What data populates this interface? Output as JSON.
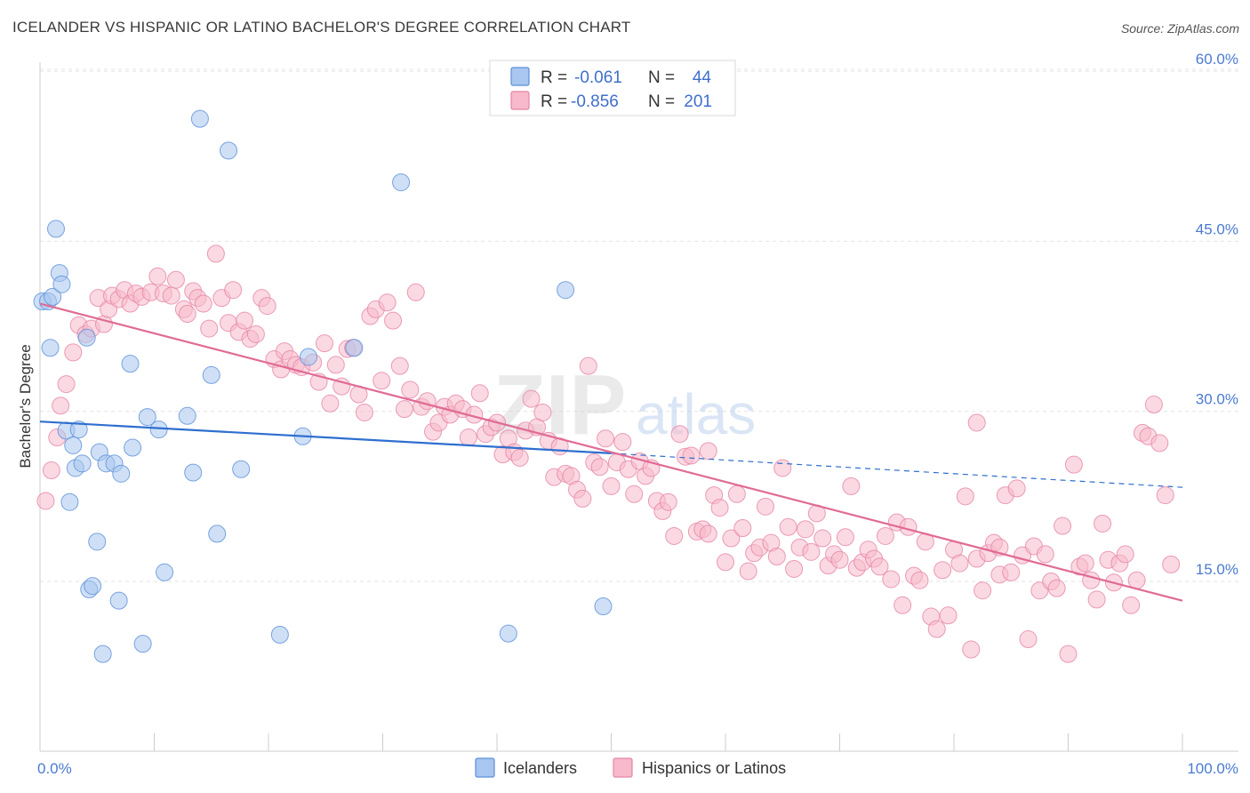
{
  "header": {
    "title": "ICELANDER VS HISPANIC OR LATINO BACHELOR'S DEGREE CORRELATION CHART",
    "source": "Source: ZipAtlas.com"
  },
  "watermark": {
    "zip": "ZIP",
    "atlas": "atlas"
  },
  "legend_box": {
    "rows": [
      {
        "r_label": "R =",
        "r_value": "-0.061",
        "n_label": "N =",
        "n_value": "44",
        "color": "#a8c6ef",
        "stroke": "#5b8fd9"
      },
      {
        "r_label": "R =",
        "r_value": "-0.856",
        "n_label": "N =",
        "n_value": "201",
        "color": "#f7b9cb",
        "stroke": "#e585a6"
      }
    ]
  },
  "bottom_legend": [
    {
      "label": "Icelanders",
      "color": "#a8c6ef",
      "stroke": "#5b8fd9"
    },
    {
      "label": "Hispanics or Latinos",
      "color": "#f7b9cb",
      "stroke": "#e585a6"
    }
  ],
  "chart_data": {
    "type": "scatter",
    "title": "ICELANDER VS HISPANIC OR LATINO BACHELOR'S DEGREE CORRELATION CHART",
    "xlabel": "",
    "ylabel": "Bachelor's Degree",
    "xlim": [
      0,
      100
    ],
    "ylim": [
      0,
      62
    ],
    "x_tick_labels": [
      "0.0%",
      "100.0%"
    ],
    "y_ticks": [
      15,
      30,
      45,
      60
    ],
    "y_tick_labels": [
      "15.0%",
      "30.0%",
      "45.0%",
      "60.0%"
    ],
    "grid": true,
    "colors": {
      "icelanders_fill": "#a8c6ef",
      "icelanders_stroke": "#5b8fd9",
      "icelanders_line": "#2f6fcf",
      "hispanic_fill": "#f7b9cb",
      "hispanic_stroke": "#e585a6",
      "hispanic_line": "#e06b95"
    },
    "series": [
      {
        "name": "Icelanders",
        "trend": {
          "x0": 0,
          "y0": 29.1,
          "x1": 50,
          "y1": 26.3,
          "dashed_to_x": 100,
          "dashed_y1": 23.3
        },
        "points": [
          [
            0.2,
            39.7
          ],
          [
            0.7,
            39.7
          ],
          [
            1.1,
            40.1
          ],
          [
            1.4,
            46.1
          ],
          [
            1.7,
            42.2
          ],
          [
            1.9,
            41.2
          ],
          [
            0.9,
            35.6
          ],
          [
            2.3,
            28.3
          ],
          [
            2.6,
            22.0
          ],
          [
            2.9,
            27.0
          ],
          [
            3.1,
            25.0
          ],
          [
            3.4,
            28.4
          ],
          [
            3.7,
            25.4
          ],
          [
            4.1,
            36.5
          ],
          [
            4.3,
            14.3
          ],
          [
            4.6,
            14.6
          ],
          [
            5.0,
            18.5
          ],
          [
            5.2,
            26.4
          ],
          [
            5.5,
            8.6
          ],
          [
            5.8,
            25.4
          ],
          [
            6.5,
            25.4
          ],
          [
            6.9,
            13.3
          ],
          [
            7.1,
            24.5
          ],
          [
            7.9,
            34.2
          ],
          [
            8.1,
            26.8
          ],
          [
            9.0,
            9.5
          ],
          [
            9.4,
            29.5
          ],
          [
            10.4,
            28.4
          ],
          [
            10.9,
            15.8
          ],
          [
            12.9,
            29.6
          ],
          [
            13.4,
            24.6
          ],
          [
            14.0,
            55.8
          ],
          [
            15.0,
            33.2
          ],
          [
            15.5,
            19.2
          ],
          [
            16.5,
            53.0
          ],
          [
            17.6,
            24.9
          ],
          [
            21.0,
            10.3
          ],
          [
            23.0,
            27.8
          ],
          [
            23.5,
            34.8
          ],
          [
            27.5,
            35.6
          ],
          [
            31.6,
            50.2
          ],
          [
            41.0,
            10.4
          ],
          [
            46.0,
            40.7
          ],
          [
            49.3,
            12.8
          ]
        ]
      },
      {
        "name": "Hispanics or Latinos",
        "trend": {
          "x0": 0,
          "y0": 39.5,
          "x1": 100,
          "y1": 13.3
        },
        "points": [
          [
            0.5,
            22.1
          ],
          [
            1.0,
            24.8
          ],
          [
            1.5,
            27.7
          ],
          [
            1.8,
            30.5
          ],
          [
            2.3,
            32.4
          ],
          [
            2.9,
            35.2
          ],
          [
            3.4,
            37.6
          ],
          [
            4.0,
            36.8
          ],
          [
            4.5,
            37.3
          ],
          [
            5.1,
            40.0
          ],
          [
            5.6,
            37.7
          ],
          [
            6.0,
            39.0
          ],
          [
            6.3,
            40.2
          ],
          [
            6.9,
            39.9
          ],
          [
            7.4,
            40.7
          ],
          [
            7.9,
            39.5
          ],
          [
            8.4,
            40.4
          ],
          [
            8.9,
            40.1
          ],
          [
            9.7,
            40.5
          ],
          [
            10.3,
            41.9
          ],
          [
            10.8,
            40.4
          ],
          [
            11.5,
            40.2
          ],
          [
            11.9,
            41.6
          ],
          [
            12.6,
            39.0
          ],
          [
            12.9,
            38.6
          ],
          [
            13.4,
            40.6
          ],
          [
            13.8,
            40.0
          ],
          [
            14.3,
            39.5
          ],
          [
            14.8,
            37.3
          ],
          [
            15.4,
            43.9
          ],
          [
            15.9,
            40.0
          ],
          [
            16.5,
            37.8
          ],
          [
            16.9,
            40.7
          ],
          [
            17.4,
            37.0
          ],
          [
            17.9,
            38.0
          ],
          [
            18.4,
            36.4
          ],
          [
            18.9,
            36.8
          ],
          [
            19.4,
            40.0
          ],
          [
            19.9,
            39.3
          ],
          [
            20.5,
            34.6
          ],
          [
            21.1,
            33.7
          ],
          [
            21.4,
            35.3
          ],
          [
            21.9,
            34.6
          ],
          [
            22.4,
            34.1
          ],
          [
            22.9,
            33.9
          ],
          [
            23.9,
            34.3
          ],
          [
            24.4,
            32.6
          ],
          [
            24.9,
            36.0
          ],
          [
            25.4,
            30.7
          ],
          [
            25.9,
            34.1
          ],
          [
            26.4,
            32.2
          ],
          [
            26.9,
            35.5
          ],
          [
            27.4,
            35.6
          ],
          [
            27.9,
            31.5
          ],
          [
            28.4,
            29.9
          ],
          [
            28.9,
            38.4
          ],
          [
            29.4,
            39.0
          ],
          [
            29.9,
            32.7
          ],
          [
            30.4,
            39.6
          ],
          [
            30.9,
            38.0
          ],
          [
            31.5,
            34.0
          ],
          [
            31.9,
            30.2
          ],
          [
            32.4,
            31.9
          ],
          [
            32.9,
            40.5
          ],
          [
            33.4,
            30.4
          ],
          [
            33.9,
            30.9
          ],
          [
            34.4,
            28.2
          ],
          [
            34.9,
            29.0
          ],
          [
            35.4,
            30.4
          ],
          [
            35.9,
            29.7
          ],
          [
            36.4,
            30.7
          ],
          [
            37.0,
            30.2
          ],
          [
            37.5,
            27.7
          ],
          [
            38.0,
            29.7
          ],
          [
            38.5,
            31.6
          ],
          [
            39.0,
            28.0
          ],
          [
            39.5,
            28.6
          ],
          [
            40.0,
            29.0
          ],
          [
            40.5,
            26.2
          ],
          [
            41.0,
            27.6
          ],
          [
            41.5,
            26.4
          ],
          [
            42.0,
            25.9
          ],
          [
            42.5,
            28.3
          ],
          [
            43.0,
            31.1
          ],
          [
            43.5,
            28.6
          ],
          [
            44.0,
            29.9
          ],
          [
            44.5,
            27.4
          ],
          [
            45.0,
            24.2
          ],
          [
            45.5,
            26.9
          ],
          [
            46.0,
            24.5
          ],
          [
            46.5,
            24.3
          ],
          [
            47.0,
            23.1
          ],
          [
            47.5,
            22.3
          ],
          [
            48.0,
            34.0
          ],
          [
            48.5,
            25.5
          ],
          [
            49.0,
            25.1
          ],
          [
            49.5,
            27.6
          ],
          [
            50.0,
            23.4
          ],
          [
            50.5,
            25.5
          ],
          [
            51.0,
            27.3
          ],
          [
            51.5,
            24.9
          ],
          [
            52.0,
            22.7
          ],
          [
            52.5,
            25.6
          ],
          [
            53.0,
            24.3
          ],
          [
            53.5,
            25.0
          ],
          [
            54.0,
            22.1
          ],
          [
            54.5,
            21.2
          ],
          [
            55.0,
            22.0
          ],
          [
            55.5,
            19.0
          ],
          [
            56.0,
            28.0
          ],
          [
            56.5,
            26.0
          ],
          [
            57.0,
            26.1
          ],
          [
            57.5,
            19.4
          ],
          [
            58.0,
            19.6
          ],
          [
            58.5,
            19.2
          ],
          [
            59.0,
            22.6
          ],
          [
            59.5,
            21.5
          ],
          [
            60.0,
            16.7
          ],
          [
            60.5,
            18.8
          ],
          [
            61.0,
            22.7
          ],
          [
            61.5,
            19.7
          ],
          [
            62.0,
            15.9
          ],
          [
            62.5,
            17.5
          ],
          [
            63.0,
            18.0
          ],
          [
            63.5,
            21.6
          ],
          [
            64.0,
            18.4
          ],
          [
            64.5,
            17.2
          ],
          [
            65.0,
            25.0
          ],
          [
            65.5,
            19.8
          ],
          [
            66.0,
            16.1
          ],
          [
            66.5,
            18.0
          ],
          [
            67.0,
            19.6
          ],
          [
            67.5,
            17.6
          ],
          [
            68.0,
            21.0
          ],
          [
            68.5,
            18.8
          ],
          [
            69.0,
            16.4
          ],
          [
            69.5,
            17.4
          ],
          [
            70.0,
            16.9
          ],
          [
            70.5,
            18.9
          ],
          [
            71.0,
            23.4
          ],
          [
            71.5,
            16.2
          ],
          [
            72.0,
            16.7
          ],
          [
            72.5,
            17.8
          ],
          [
            73.0,
            17.0
          ],
          [
            73.5,
            16.3
          ],
          [
            74.0,
            19.0
          ],
          [
            74.5,
            15.2
          ],
          [
            75.0,
            20.2
          ],
          [
            75.5,
            12.9
          ],
          [
            76.0,
            19.8
          ],
          [
            76.5,
            15.5
          ],
          [
            77.0,
            15.1
          ],
          [
            77.5,
            18.5
          ],
          [
            78.0,
            11.9
          ],
          [
            78.5,
            10.8
          ],
          [
            79.0,
            16.0
          ],
          [
            79.5,
            12.0
          ],
          [
            80.0,
            17.8
          ],
          [
            80.5,
            16.6
          ],
          [
            81.0,
            22.5
          ],
          [
            81.5,
            9.0
          ],
          [
            82.0,
            17.0
          ],
          [
            82.5,
            14.2
          ],
          [
            83.0,
            17.5
          ],
          [
            83.5,
            18.4
          ],
          [
            84.0,
            15.6
          ],
          [
            84.5,
            22.6
          ],
          [
            85.0,
            15.8
          ],
          [
            85.5,
            23.2
          ],
          [
            86.0,
            17.3
          ],
          [
            86.5,
            9.9
          ],
          [
            87.0,
            18.1
          ],
          [
            87.5,
            14.2
          ],
          [
            88.0,
            17.4
          ],
          [
            88.5,
            15.0
          ],
          [
            89.0,
            14.4
          ],
          [
            89.5,
            19.9
          ],
          [
            90.0,
            8.6
          ],
          [
            90.5,
            25.3
          ],
          [
            91.0,
            16.3
          ],
          [
            91.5,
            16.6
          ],
          [
            92.0,
            15.1
          ],
          [
            92.5,
            13.4
          ],
          [
            93.0,
            20.1
          ],
          [
            93.5,
            16.9
          ],
          [
            94.0,
            14.9
          ],
          [
            94.5,
            16.6
          ],
          [
            95.0,
            17.4
          ],
          [
            95.5,
            12.9
          ],
          [
            96.0,
            15.1
          ],
          [
            96.5,
            28.1
          ],
          [
            97.0,
            27.8
          ],
          [
            97.5,
            30.6
          ],
          [
            98.0,
            27.2
          ],
          [
            98.5,
            22.6
          ],
          [
            99.0,
            16.5
          ],
          [
            58.5,
            26.5
          ],
          [
            82.0,
            29.0
          ],
          [
            84.0,
            18.0
          ]
        ]
      }
    ]
  }
}
